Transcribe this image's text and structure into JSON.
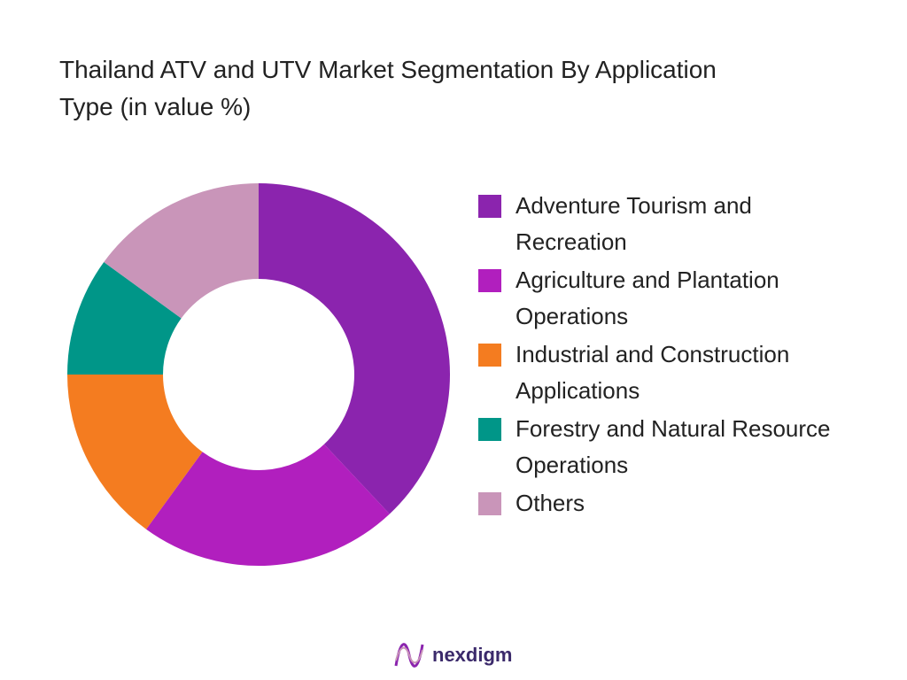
{
  "chart_data": {
    "type": "donut",
    "title": "Thailand ATV and UTV Market Segmentation By Application Type (in value %)",
    "categories": [
      "Adventure Tourism and Recreation",
      "Agriculture and Plantation Operations",
      "Industrial and Construction Applications",
      "Forestry and Natural Resource Operations",
      "Others"
    ],
    "values": [
      38,
      22,
      15,
      10,
      15
    ],
    "colors": [
      "#8B24AE",
      "#B11FBE",
      "#F47C20",
      "#009688",
      "#C995B9"
    ],
    "legend": "right"
  },
  "footer": {
    "logo": "nexdigm"
  }
}
